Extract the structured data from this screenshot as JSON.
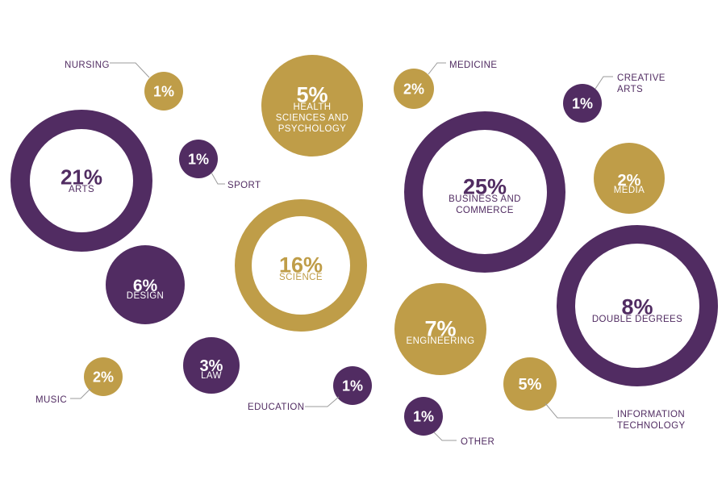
{
  "colors": {
    "purple": "#512c62",
    "gold": "#bf9d48",
    "white": "#ffffff"
  },
  "chart_data": {
    "type": "bubble",
    "title": "",
    "series": [
      {
        "id": "nursing",
        "value": 1,
        "pct_text": "1%",
        "label": "NURSING",
        "label_position": "outside",
        "color": "gold",
        "style": "filled"
      },
      {
        "id": "health",
        "value": 5,
        "pct_text": "5%",
        "label": "HEALTH SCIENCES AND PSYCHOLOGY",
        "label_lines": [
          "HEALTH",
          "SCIENCES AND",
          "PSYCHOLOGY"
        ],
        "label_position": "inside",
        "color": "gold",
        "style": "filled"
      },
      {
        "id": "medicine",
        "value": 2,
        "pct_text": "2%",
        "label": "MEDICINE",
        "label_position": "outside",
        "color": "gold",
        "style": "filled"
      },
      {
        "id": "creative",
        "value": 1,
        "pct_text": "1%",
        "label": "CREATIVE ARTS",
        "label_lines": [
          "CREATIVE",
          "ARTS"
        ],
        "label_position": "outside",
        "color": "purple",
        "style": "filled"
      },
      {
        "id": "arts",
        "value": 21,
        "pct_text": "21%",
        "label": "ARTS",
        "label_position": "inside",
        "color": "purple",
        "style": "ring"
      },
      {
        "id": "sport",
        "value": 1,
        "pct_text": "1%",
        "label": "SPORT",
        "label_position": "outside",
        "color": "purple",
        "style": "filled"
      },
      {
        "id": "business",
        "value": 25,
        "pct_text": "25%",
        "label": "BUSINESS AND COMMERCE",
        "label_lines": [
          "BUSINESS AND",
          "COMMERCE"
        ],
        "label_position": "inside",
        "color": "purple",
        "style": "ring"
      },
      {
        "id": "media",
        "value": 2,
        "pct_text": "2%",
        "label": "MEDIA",
        "label_position": "inside",
        "color": "gold",
        "style": "filled"
      },
      {
        "id": "science",
        "value": 16,
        "pct_text": "16%",
        "label": "SCIENCE",
        "label_position": "inside",
        "color": "gold",
        "style": "ring"
      },
      {
        "id": "design",
        "value": 6,
        "pct_text": "6%",
        "label": "DESIGN",
        "label_position": "inside",
        "color": "purple",
        "style": "filled"
      },
      {
        "id": "double",
        "value": 8,
        "pct_text": "8%",
        "label": "DOUBLE DEGREES",
        "label_position": "inside",
        "color": "purple",
        "style": "ring"
      },
      {
        "id": "engineering",
        "value": 7,
        "pct_text": "7%",
        "label": "ENGINEERING",
        "label_position": "inside",
        "color": "gold",
        "style": "filled"
      },
      {
        "id": "law",
        "value": 3,
        "pct_text": "3%",
        "label": "LAW",
        "label_position": "inside",
        "color": "purple",
        "style": "filled"
      },
      {
        "id": "music",
        "value": 2,
        "pct_text": "2%",
        "label": "MUSIC",
        "label_position": "outside",
        "color": "gold",
        "style": "filled"
      },
      {
        "id": "education",
        "value": 1,
        "pct_text": "1%",
        "label": "EDUCATION",
        "label_position": "outside",
        "color": "purple",
        "style": "filled"
      },
      {
        "id": "other",
        "value": 1,
        "pct_text": "1%",
        "label": "OTHER",
        "label_position": "outside",
        "color": "purple",
        "style": "filled"
      },
      {
        "id": "it",
        "value": 5,
        "pct_text": "5%",
        "label": "INFORMATION TECHNOLOGY",
        "label_lines": [
          "INFORMATION",
          "TECHNOLOGY"
        ],
        "label_position": "outside",
        "color": "gold",
        "style": "filled"
      }
    ]
  }
}
